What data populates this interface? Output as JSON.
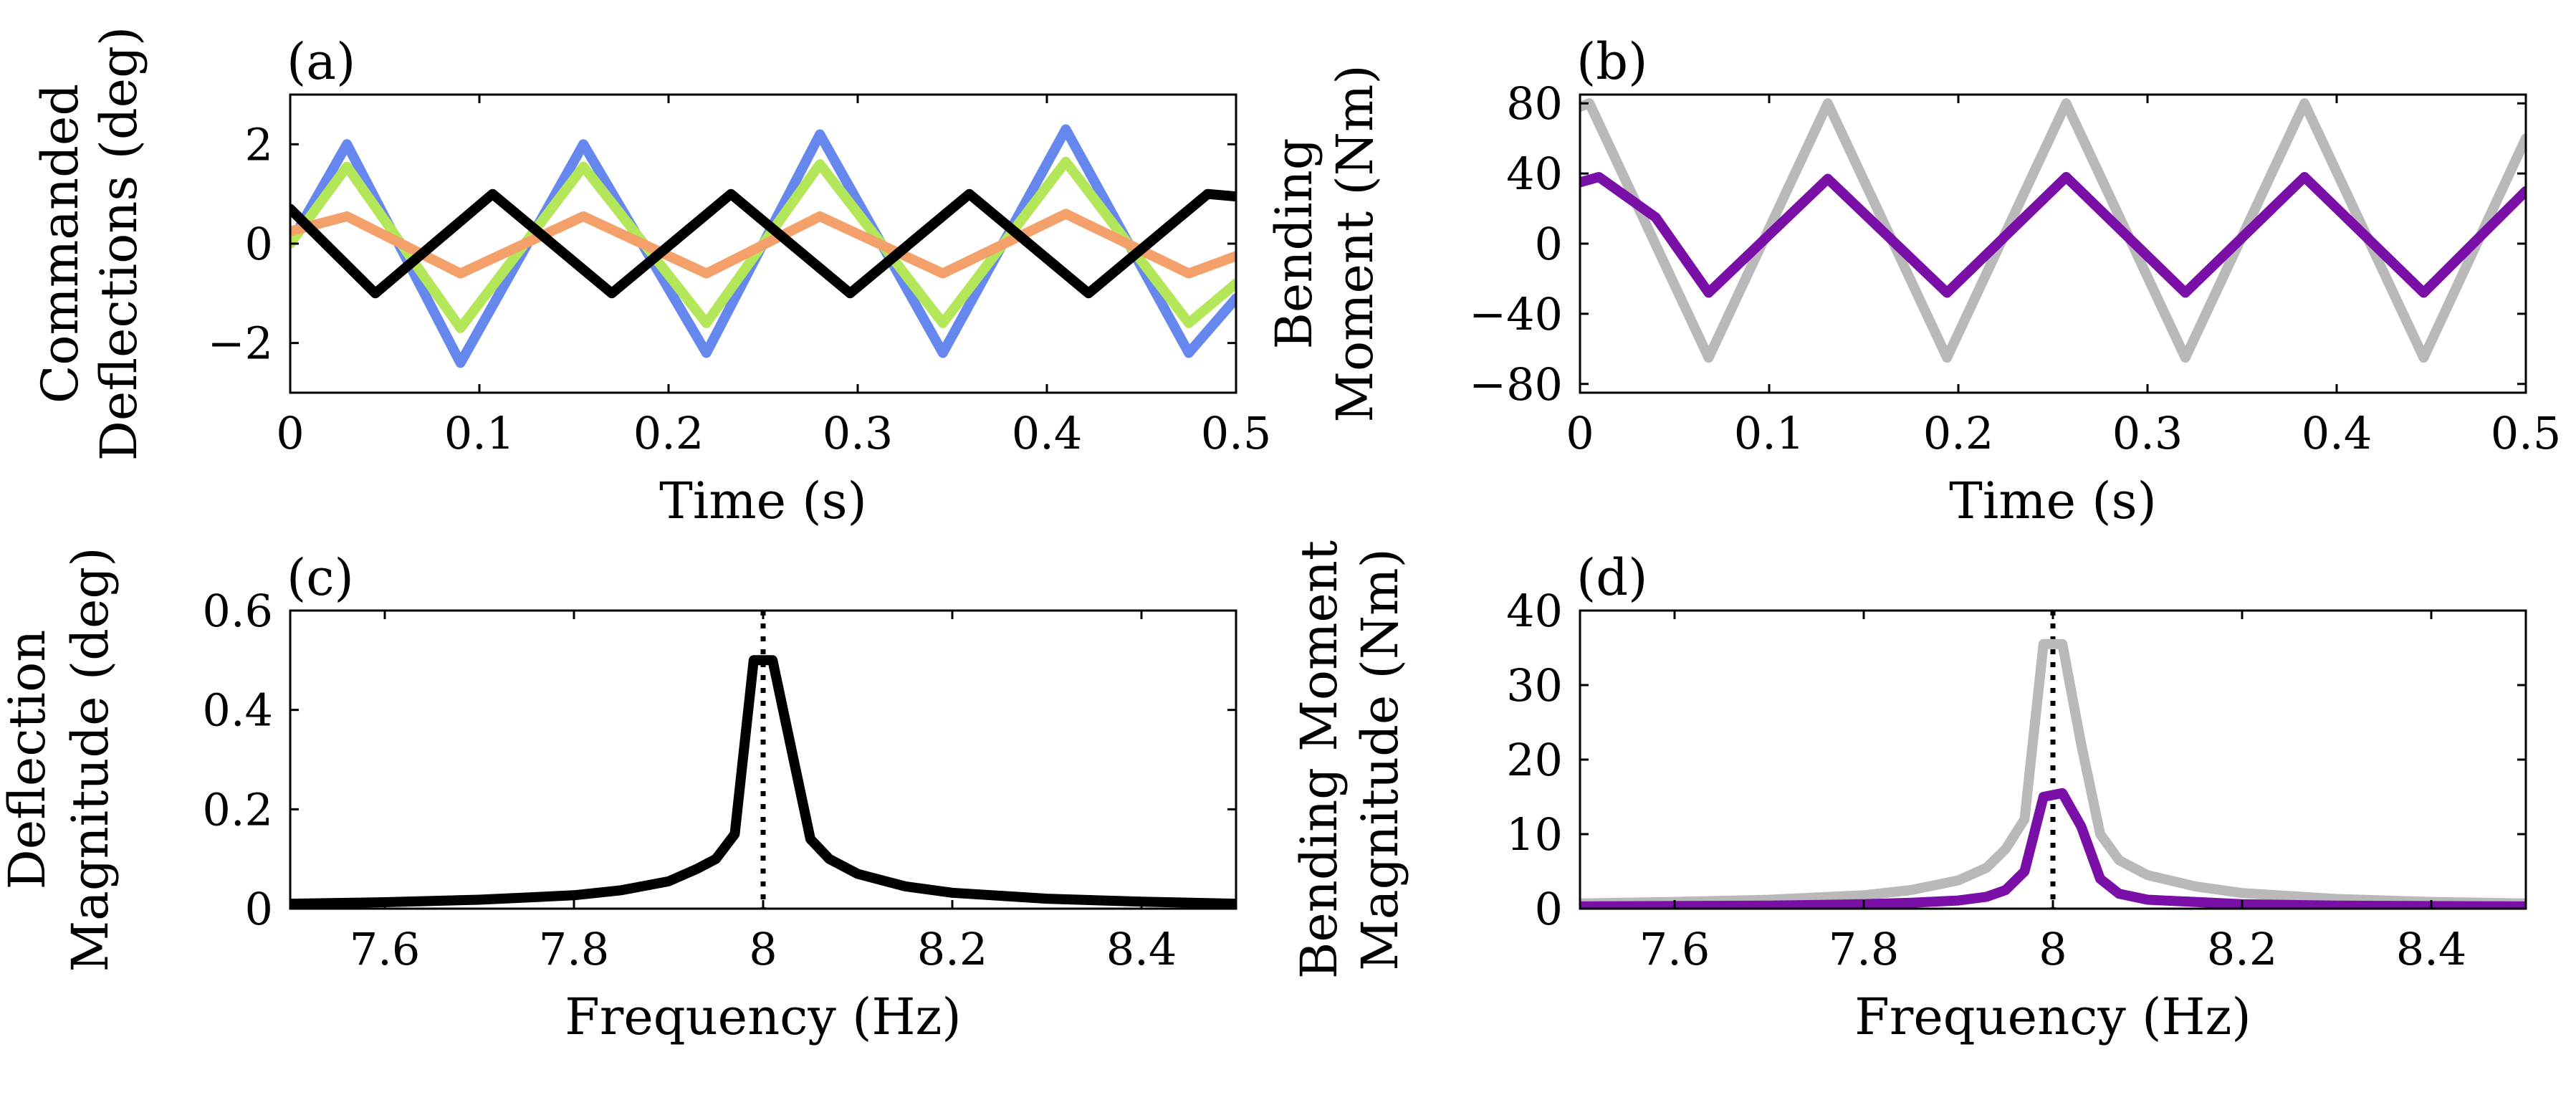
{
  "colors": {
    "blue": "#6587ee",
    "green": "#b4e65a",
    "orange": "#f4a06b",
    "black": "#000000",
    "gray": "#b9b9b9",
    "purple": "#7a0fa8"
  },
  "chart_data": [
    {
      "id": "a",
      "type": "line",
      "panel_label": "(a)",
      "xlabel": "Time (s)",
      "ylabel": [
        "Commanded",
        "Deflections (deg)"
      ],
      "xlim": [
        0,
        0.5
      ],
      "ylim": [
        -3,
        3
      ],
      "xticks": [
        0,
        0.1,
        0.2,
        0.3,
        0.4,
        0.5
      ],
      "xtick_labels": [
        "0",
        "0.1",
        "0.2",
        "0.3",
        "0.4",
        "0.5"
      ],
      "yticks": [
        -2,
        0,
        2
      ],
      "ytick_labels": [
        "−2",
        "0",
        "2"
      ],
      "series": [
        {
          "name": "blue",
          "color_key": "blue",
          "x": [
            0,
            0.03,
            0.09,
            0.155,
            0.22,
            0.28,
            0.345,
            0.41,
            0.475,
            0.5
          ],
          "y": [
            0,
            2.0,
            -2.4,
            2.0,
            -2.2,
            2.2,
            -2.2,
            2.3,
            -2.2,
            -1.1
          ]
        },
        {
          "name": "green",
          "color_key": "green",
          "x": [
            0,
            0.03,
            0.09,
            0.155,
            0.22,
            0.28,
            0.345,
            0.41,
            0.475,
            0.5
          ],
          "y": [
            0,
            1.55,
            -1.7,
            1.55,
            -1.6,
            1.6,
            -1.6,
            1.65,
            -1.6,
            -0.8
          ]
        },
        {
          "name": "orange",
          "color_key": "orange",
          "x": [
            0,
            0.03,
            0.09,
            0.155,
            0.22,
            0.28,
            0.345,
            0.41,
            0.475,
            0.5
          ],
          "y": [
            0.25,
            0.55,
            -0.6,
            0.55,
            -0.6,
            0.55,
            -0.6,
            0.6,
            -0.6,
            -0.25
          ]
        },
        {
          "name": "black",
          "color_key": "black",
          "x": [
            0,
            0.045,
            0.107,
            0.17,
            0.233,
            0.296,
            0.359,
            0.422,
            0.485,
            0.5
          ],
          "y": [
            0.7,
            -1.0,
            1.0,
            -1.0,
            1.0,
            -1.0,
            1.0,
            -1.0,
            1.0,
            0.95
          ]
        }
      ]
    },
    {
      "id": "b",
      "type": "line",
      "panel_label": "(b)",
      "xlabel": "Time (s)",
      "ylabel": [
        "Bending",
        "Moment (Nm)"
      ],
      "xlim": [
        0,
        0.5
      ],
      "ylim": [
        -85,
        85
      ],
      "xticks": [
        0,
        0.1,
        0.2,
        0.3,
        0.4,
        0.5
      ],
      "xtick_labels": [
        "0",
        "0.1",
        "0.2",
        "0.3",
        "0.4",
        "0.5"
      ],
      "yticks": [
        -80,
        -40,
        0,
        40,
        80
      ],
      "ytick_labels": [
        "−80",
        "−40",
        "0",
        "40",
        "80"
      ],
      "series": [
        {
          "name": "gray",
          "color_key": "gray",
          "x": [
            0,
            0.005,
            0.068,
            0.131,
            0.194,
            0.257,
            0.32,
            0.383,
            0.446,
            0.5
          ],
          "y": [
            78,
            80,
            -65,
            80,
            -65,
            80,
            -65,
            80,
            -65,
            60
          ]
        },
        {
          "name": "purple",
          "color_key": "purple",
          "x": [
            0,
            0.01,
            0.04,
            0.068,
            0.131,
            0.194,
            0.257,
            0.32,
            0.383,
            0.446,
            0.5
          ],
          "y": [
            35,
            38,
            15,
            -28,
            37,
            -28,
            38,
            -28,
            38,
            -28,
            30
          ]
        }
      ]
    },
    {
      "id": "c",
      "type": "line",
      "panel_label": "(c)",
      "xlabel": "Frequency (Hz)",
      "ylabel": [
        "Deflection",
        "Magnitude (deg)"
      ],
      "xlim": [
        7.5,
        8.5
      ],
      "ylim": [
        0,
        0.6
      ],
      "xticks": [
        7.6,
        7.8,
        8,
        8.2,
        8.4
      ],
      "xtick_labels": [
        "7.6",
        "7.8",
        "8",
        "8.2",
        "8.4"
      ],
      "yticks": [
        0,
        0.2,
        0.4,
        0.6
      ],
      "ytick_labels": [
        "0",
        "0.2",
        "0.4",
        "0.6"
      ],
      "vline_x": 8,
      "series": [
        {
          "name": "black",
          "color_key": "black",
          "x": [
            7.5,
            7.6,
            7.7,
            7.8,
            7.85,
            7.9,
            7.93,
            7.95,
            7.97,
            7.99,
            8.01,
            8.03,
            8.05,
            8.07,
            8.1,
            8.15,
            8.2,
            8.3,
            8.4,
            8.5
          ],
          "y": [
            0.01,
            0.013,
            0.018,
            0.027,
            0.037,
            0.055,
            0.08,
            0.1,
            0.15,
            0.5,
            0.5,
            0.32,
            0.14,
            0.1,
            0.07,
            0.045,
            0.032,
            0.02,
            0.014,
            0.01
          ]
        }
      ]
    },
    {
      "id": "d",
      "type": "line",
      "panel_label": "(d)",
      "xlabel": "Frequency (Hz)",
      "ylabel": [
        "Bending Moment",
        "Magnitude (Nm)"
      ],
      "xlim": [
        7.5,
        8.5
      ],
      "ylim": [
        0,
        40
      ],
      "xticks": [
        7.6,
        7.8,
        8,
        8.2,
        8.4
      ],
      "xtick_labels": [
        "7.6",
        "7.8",
        "8",
        "8.2",
        "8.4"
      ],
      "yticks": [
        0,
        10,
        20,
        30,
        40
      ],
      "ytick_labels": [
        "0",
        "10",
        "20",
        "30",
        "40"
      ],
      "vline_x": 8,
      "series": [
        {
          "name": "gray",
          "color_key": "gray",
          "x": [
            7.5,
            7.6,
            7.7,
            7.8,
            7.85,
            7.9,
            7.93,
            7.95,
            7.97,
            7.99,
            8.01,
            8.03,
            8.05,
            8.07,
            8.1,
            8.15,
            8.2,
            8.3,
            8.4,
            8.5
          ],
          "y": [
            0.7,
            0.9,
            1.2,
            1.8,
            2.5,
            3.8,
            5.5,
            8,
            12,
            35.5,
            35.5,
            22,
            10,
            6.5,
            4.5,
            3,
            2.1,
            1.3,
            0.9,
            0.7
          ]
        },
        {
          "name": "purple",
          "color_key": "purple",
          "x": [
            7.5,
            7.7,
            7.8,
            7.85,
            7.9,
            7.93,
            7.95,
            7.97,
            7.99,
            8.01,
            8.03,
            8.05,
            8.07,
            8.1,
            8.2,
            8.3,
            8.5
          ],
          "y": [
            0.3,
            0.4,
            0.6,
            0.8,
            1.1,
            1.6,
            2.5,
            5,
            15,
            15.5,
            11,
            4,
            2,
            1.2,
            0.6,
            0.4,
            0.3
          ]
        }
      ]
    }
  ]
}
